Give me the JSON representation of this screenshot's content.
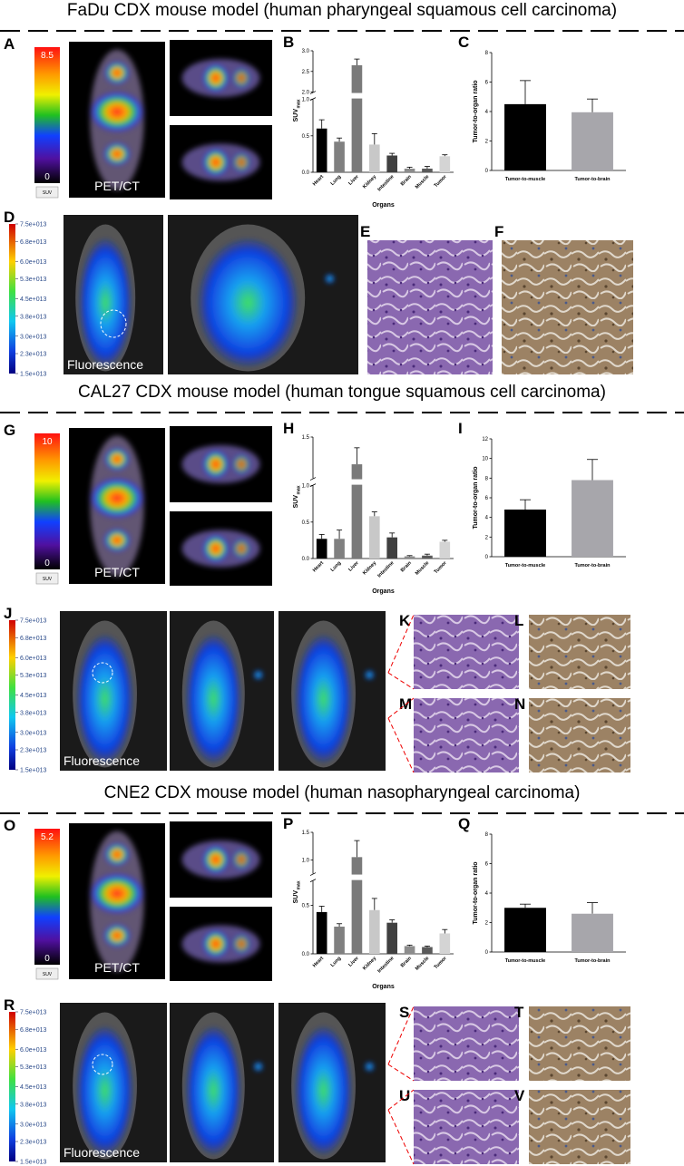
{
  "sections": [
    {
      "title": "FaDu CDX mouse model (human pharyngeal squamous cell carcinoma)",
      "pet": {
        "letter": "A",
        "scale_max": 8.5,
        "scale_min": 0,
        "unit": "SUV",
        "caption": "PET/CT"
      },
      "suv_chart": {
        "letter": "B",
        "type": "bar",
        "ylabel": "SUV",
        "ylabel_sub": "max",
        "xlabel": "Organs",
        "categories": [
          "Heart",
          "Lung",
          "Liver",
          "Kidney",
          "Intestine",
          "Brain",
          "Muscle",
          "Tumor"
        ],
        "colors": [
          "#000000",
          "#808080",
          "#7a7a7a",
          "#c8c8c8",
          "#404040",
          "#8c8c8c",
          "#5a5a5a",
          "#d4d4d4"
        ],
        "values": [
          0.6,
          0.42,
          2.65,
          0.38,
          0.23,
          0.05,
          0.05,
          0.22
        ],
        "errors": [
          0.12,
          0.05,
          0.15,
          0.15,
          0.03,
          0.02,
          0.03,
          0.02
        ],
        "ylim_lower": [
          0,
          1.0
        ],
        "ylim_upper": [
          2.0,
          3.0
        ],
        "yticks_lower": [
          {
            "value": 0,
            "label": "0.0"
          },
          {
            "value": 0.5,
            "label": "0.5"
          },
          {
            "value": 1,
            "label": "1.0"
          }
        ],
        "yticks_upper": [
          {
            "value": 2,
            "label": "2.0"
          },
          {
            "value": 2.5,
            "label": "2.5"
          },
          {
            "value": 3,
            "label": "3.0"
          }
        ]
      },
      "ratio_chart": {
        "letter": "C",
        "type": "bar",
        "ylabel": "Tumor-to-organ ratio",
        "categories": [
          "Tumor-to-muscle",
          "Tumor-to-brain"
        ],
        "colors": [
          "#000000",
          "#a7a6ab"
        ],
        "values": [
          4.5,
          3.95
        ],
        "errors": [
          1.6,
          0.9
        ],
        "ylim": [
          0,
          8
        ],
        "yticks": [
          0,
          2,
          4,
          6,
          8
        ]
      },
      "fluorescence": {
        "letter": "D",
        "caption": "Fluorescence",
        "colorbar_ticks": [
          {
            "value": 75000000000000.0,
            "label": "7.5e+013"
          },
          {
            "value": 68000000000000.0,
            "label": "6.8e+013"
          },
          {
            "value": 60000000000000.0,
            "label": "6.0e+013"
          },
          {
            "value": 53000000000000.0,
            "label": "5.3e+013"
          },
          {
            "value": 45000000000000.0,
            "label": "4.5e+013"
          },
          {
            "value": 38000000000000.0,
            "label": "3.8e+013"
          },
          {
            "value": 30000000000000.0,
            "label": "3.0e+013"
          },
          {
            "value": 23000000000000.0,
            "label": "2.3e+013"
          },
          {
            "value": 15000000000000.0,
            "label": "1.5e+013"
          }
        ]
      },
      "histology_letters": [
        "E",
        "F"
      ]
    },
    {
      "title": "CAL27 CDX mouse model (human tongue squamous cell carcinoma)",
      "pet": {
        "letter": "G",
        "scale_max": 10,
        "scale_min": 0,
        "unit": "SUV",
        "caption": "PET/CT"
      },
      "suv_chart": {
        "letter": "H",
        "type": "bar",
        "ylabel": "SUV",
        "ylabel_sub": "max",
        "xlabel": "Organs",
        "categories": [
          "Heart",
          "Lung",
          "Liver",
          "Kidney",
          "Intestine",
          "Brain",
          "Muscle",
          "Tumor"
        ],
        "colors": [
          "#000000",
          "#808080",
          "#7a7a7a",
          "#c8c8c8",
          "#404040",
          "#8c8c8c",
          "#5a5a5a",
          "#d4d4d4"
        ],
        "values": [
          0.27,
          0.27,
          1.17,
          0.58,
          0.29,
          0.03,
          0.04,
          0.23
        ],
        "errors": [
          0.06,
          0.12,
          0.2,
          0.06,
          0.06,
          0.01,
          0.02,
          0.02
        ],
        "ylim_lower": [
          0,
          1.0
        ],
        "ylim_upper": [
          1.0,
          1.5
        ],
        "yticks_lower": [
          {
            "value": 0,
            "label": "0.0"
          },
          {
            "value": 0.5,
            "label": "0.5"
          },
          {
            "value": 1,
            "label": "1.0"
          }
        ],
        "yticks_upper": [
          {
            "value": 1.5,
            "label": "1.5"
          }
        ]
      },
      "ratio_chart": {
        "letter": "I",
        "type": "bar",
        "ylabel": "Tumor-to-organ ratio",
        "categories": [
          "Tumor-to-muscle",
          "Tumor-to-brain"
        ],
        "colors": [
          "#000000",
          "#a7a6ab"
        ],
        "values": [
          4.8,
          7.8
        ],
        "errors": [
          1.0,
          2.1
        ],
        "ylim": [
          0,
          12
        ],
        "yticks": [
          0,
          2,
          4,
          6,
          8,
          10,
          12
        ]
      },
      "fluorescence": {
        "letter": "J",
        "caption": "Fluorescence",
        "colorbar_ticks": [
          {
            "value": 75000000000000.0,
            "label": "7.5e+013"
          },
          {
            "value": 68000000000000.0,
            "label": "6.8e+013"
          },
          {
            "value": 60000000000000.0,
            "label": "6.0e+013"
          },
          {
            "value": 53000000000000.0,
            "label": "5.3e+013"
          },
          {
            "value": 45000000000000.0,
            "label": "4.5e+013"
          },
          {
            "value": 38000000000000.0,
            "label": "3.8e+013"
          },
          {
            "value": 30000000000000.0,
            "label": "3.0e+013"
          },
          {
            "value": 23000000000000.0,
            "label": "2.3e+013"
          },
          {
            "value": 15000000000000.0,
            "label": "1.5e+013"
          }
        ]
      },
      "histology_letters": [
        "K",
        "L",
        "M",
        "N"
      ]
    },
    {
      "title": "CNE2 CDX mouse model (human nasopharyngeal carcinoma)",
      "pet": {
        "letter": "O",
        "scale_max": 5.2,
        "scale_min": 0,
        "unit": "SUV",
        "caption": "PET/CT"
      },
      "suv_chart": {
        "letter": "P",
        "type": "bar",
        "ylabel": "SUV",
        "ylabel_sub": "max",
        "xlabel": "Organs",
        "categories": [
          "Heart",
          "Lung",
          "Liver",
          "Kidney",
          "Intestine",
          "Brain",
          "Muscle",
          "Tumor"
        ],
        "colors": [
          "#000000",
          "#808080",
          "#7a7a7a",
          "#c8c8c8",
          "#404040",
          "#8c8c8c",
          "#5a5a5a",
          "#d4d4d4"
        ],
        "values": [
          0.43,
          0.28,
          1.05,
          0.45,
          0.32,
          0.08,
          0.07,
          0.21
        ],
        "errors": [
          0.06,
          0.03,
          0.3,
          0.12,
          0.03,
          0.01,
          0.01,
          0.04
        ],
        "ylim_lower": [
          0,
          0.75
        ],
        "ylim_upper": [
          0.75,
          1.5
        ],
        "yticks_lower": [
          {
            "value": 0,
            "label": "0.0"
          },
          {
            "value": 0.5,
            "label": "0.5"
          }
        ],
        "yticks_upper": [
          {
            "value": 1,
            "label": "1.0"
          },
          {
            "value": 1.5,
            "label": "1.5"
          }
        ]
      },
      "ratio_chart": {
        "letter": "Q",
        "type": "bar",
        "ylabel": "Tumor-to-organ ratio",
        "categories": [
          "Tumor-to-muscle",
          "Tumor-to-brain"
        ],
        "colors": [
          "#000000",
          "#a7a6ab"
        ],
        "values": [
          3.0,
          2.6
        ],
        "errors": [
          0.25,
          0.75
        ],
        "ylim": [
          0,
          8
        ],
        "yticks": [
          0,
          2,
          4,
          6,
          8
        ]
      },
      "fluorescence": {
        "letter": "R",
        "caption": "Fluorescence",
        "colorbar_ticks": [
          {
            "value": 75000000000000.0,
            "label": "7.5e+013"
          },
          {
            "value": 68000000000000.0,
            "label": "6.8e+013"
          },
          {
            "value": 60000000000000.0,
            "label": "6.0e+013"
          },
          {
            "value": 53000000000000.0,
            "label": "5.3e+013"
          },
          {
            "value": 45000000000000.0,
            "label": "4.5e+013"
          },
          {
            "value": 38000000000000.0,
            "label": "3.8e+013"
          },
          {
            "value": 30000000000000.0,
            "label": "3.0e+013"
          },
          {
            "value": 23000000000000.0,
            "label": "2.3e+013"
          },
          {
            "value": 15000000000000.0,
            "label": "1.5e+013"
          }
        ]
      },
      "histology_letters": [
        "S",
        "T",
        "U",
        "V"
      ]
    }
  ]
}
